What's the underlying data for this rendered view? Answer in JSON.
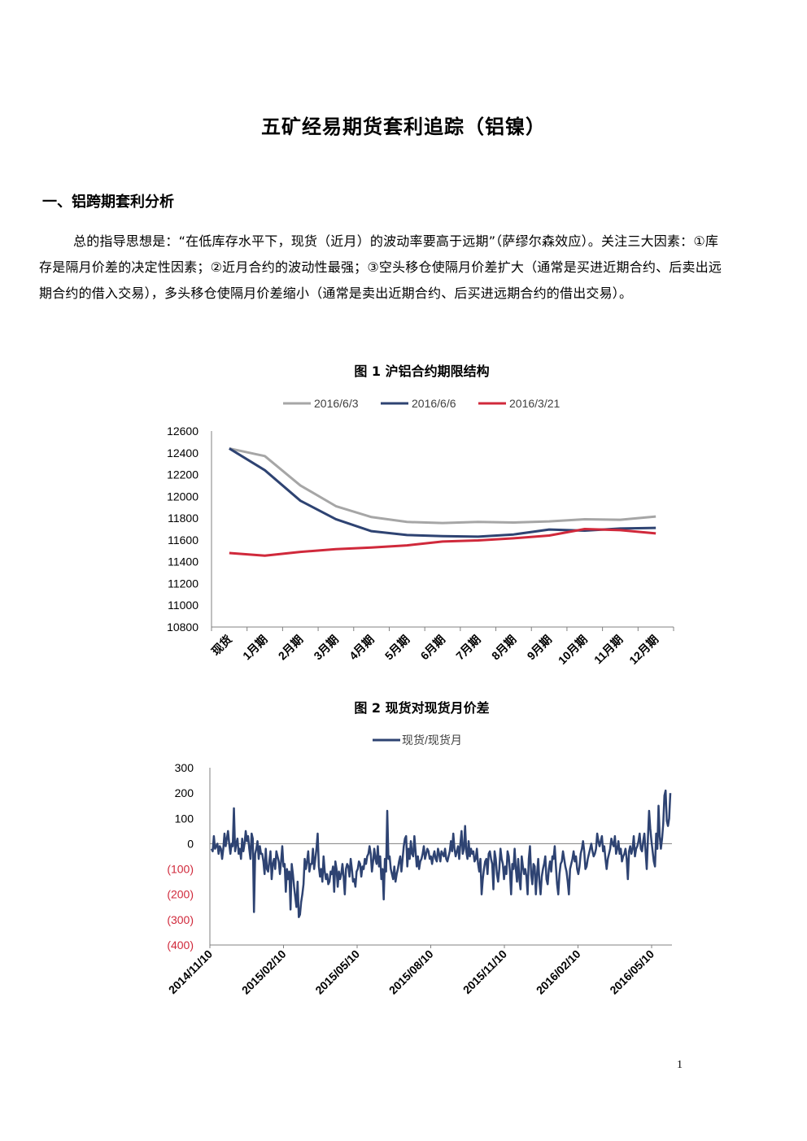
{
  "doc": {
    "title": "五矿经易期货套利追踪（铝镍）",
    "section_heading": "一、铝跨期套利分析",
    "paragraph": "总的指导思想是：“在低库存水平下，现货（近月）的波动率要高于远期”（萨缪尔森效应）。关注三大因素：①库存是隔月价差的决定性因素；②近月合约的波动性最强；③空头移仓使隔月价差扩大（通常是买进近期合约、后卖出远期合约的借入交易），多头移仓使隔月价差缩小（通常是卖出近期合约、后买进远期合约的借出交易）。",
    "page_number": "1"
  },
  "chart_data": [
    {
      "type": "line",
      "title": "图 1  沪铝合约期限结构",
      "categories": [
        "现货",
        "1月期",
        "2月期",
        "3月期",
        "4月期",
        "5月期",
        "6月期",
        "7月期",
        "8月期",
        "9月期",
        "10月期",
        "11月期",
        "12月期"
      ],
      "ylim": [
        10800,
        12600
      ],
      "yticks": [
        12600,
        12400,
        12200,
        12000,
        11800,
        11600,
        11400,
        11200,
        11000,
        10800
      ],
      "legend_position": "top",
      "series": [
        {
          "name": "2016/6/3",
          "color": "#a6a6a6",
          "values": [
            12440,
            12370,
            12100,
            11910,
            11810,
            11765,
            11755,
            11765,
            11760,
            11770,
            11790,
            11785,
            11815
          ]
        },
        {
          "name": "2016/6/6",
          "color": "#2e4372",
          "values": [
            12440,
            12240,
            11960,
            11790,
            11680,
            11645,
            11635,
            11630,
            11650,
            11695,
            11685,
            11705,
            11710
          ]
        },
        {
          "name": "2016/3/21",
          "color": "#d0293b",
          "values": [
            11480,
            11455,
            11490,
            11515,
            11530,
            11550,
            11585,
            11595,
            11615,
            11640,
            11700,
            11690,
            11660
          ]
        }
      ]
    },
    {
      "type": "line",
      "title": "图 2  现货对现货月价差",
      "ylim": [
        -400,
        300
      ],
      "yticks": [
        "300",
        "200",
        "100",
        "0",
        "(100)",
        "(200)",
        "(300)",
        "(400)"
      ],
      "negative_tick_color": "#d0293b",
      "x_tick_labels": [
        "2014/11/10",
        "2015/02/10",
        "2015/05/10",
        "2015/08/10",
        "2015/11/10",
        "2016/02/10",
        "2016/05/10"
      ],
      "x_range": [
        "2014/11/10",
        "2016/06/06"
      ],
      "legend_position": "top",
      "series": [
        {
          "name": "现货/现货月",
          "color": "#2e4372",
          "values": [
            -20,
            -30,
            30,
            -20,
            -10,
            0,
            -40,
            -10,
            -20,
            -60,
            -20,
            40,
            -10,
            20,
            50,
            0,
            -40,
            0,
            -10,
            140,
            -30,
            0,
            20,
            -40,
            -20,
            -60,
            20,
            -30,
            0,
            50,
            10,
            30,
            -20,
            -60,
            40,
            20,
            -270,
            -40,
            -20,
            10,
            -60,
            -10,
            -40,
            -40,
            -70,
            -120,
            -20,
            -100,
            -110,
            -70,
            -30,
            -140,
            -80,
            -60,
            -100,
            -30,
            -50,
            -70,
            -120,
            -70,
            -10,
            -90,
            -80,
            -190,
            -100,
            -140,
            -110,
            -260,
            -80,
            -120,
            -170,
            -210,
            -250,
            -150,
            -290,
            -280,
            -230,
            -200,
            -160,
            -60,
            -100,
            -70,
            -30,
            -110,
            -80,
            -80,
            -20,
            -100,
            -60,
            -20,
            40,
            -90,
            -130,
            -100,
            -150,
            -50,
            -110,
            -140,
            -120,
            -160,
            -150,
            -110,
            -120,
            -90,
            -190,
            -70,
            -100,
            -170,
            -110,
            -140,
            -120,
            -80,
            -130,
            -200,
            -100,
            -80,
            -90,
            -130,
            -60,
            -100,
            -150,
            -140,
            -170,
            -110,
            -100,
            -70,
            -80,
            -130,
            -90,
            -100,
            -60,
            -80,
            -50,
            -40,
            -10,
            -40,
            -110,
            -70,
            -20,
            -60,
            -80,
            -10,
            -90,
            -50,
            -140,
            -100,
            -220,
            -60,
            -110,
            130,
            -60,
            -50,
            -100,
            -120,
            -140,
            -90,
            -150,
            -120,
            -100,
            -70,
            -50,
            -110,
            -60,
            -10,
            20,
            30,
            -90,
            -20,
            -60,
            10,
            -40,
            -50,
            30,
            -30,
            -90,
            -50,
            -100,
            -70,
            -60,
            -40,
            -10,
            -60,
            -40,
            -20,
            -30,
            -60,
            -50,
            -80,
            -50,
            -30,
            -60,
            -70,
            -20,
            -40,
            -70,
            -30,
            -40,
            -50,
            -20,
            -60,
            -70,
            -50,
            -30,
            10,
            -30,
            40,
            -20,
            -50,
            -30,
            -10,
            -60,
            0,
            50,
            -40,
            -20,
            70,
            -30,
            -60,
            10,
            -50,
            -20,
            -40,
            -30,
            -70,
            -60,
            -20,
            -80,
            -110,
            -60,
            -200,
            -140,
            -100,
            -70,
            -60,
            -120,
            -40,
            -30,
            -60,
            -80,
            -180,
            -30,
            -60,
            -120,
            -150,
            -100,
            -20,
            -60,
            -80,
            -140,
            -90,
            -120,
            -30,
            -50,
            -110,
            -200,
            -80,
            -100,
            -20,
            -100,
            -150,
            -60,
            -140,
            -180,
            -50,
            -90,
            -120,
            -100,
            -130,
            -200,
            -60,
            -10,
            -120,
            -160,
            -80,
            -90,
            -200,
            -120,
            -60,
            -150,
            -200,
            -130,
            -100,
            -80,
            -50,
            -140,
            -160,
            -100,
            -70,
            -110,
            -50,
            -60,
            -10,
            -90,
            -160,
            -200,
            -120,
            -80,
            -70,
            -30,
            -60,
            -90,
            -110,
            -150,
            -200,
            -100,
            -80,
            -60,
            -30,
            -70,
            -50,
            -100,
            -120,
            -90,
            -40,
            -20,
            10,
            -30,
            -100,
            -90,
            -60,
            -40,
            -20,
            0,
            -30,
            -50,
            -40,
            -20,
            40,
            10,
            -10,
            10,
            30,
            -30,
            -10,
            -60,
            -100,
            -60,
            -40,
            -20,
            20,
            0,
            -10,
            30,
            -40,
            -20,
            10,
            -40,
            -20,
            -70,
            -50,
            -40,
            -20,
            -60,
            -140,
            -30,
            -10,
            -40,
            -20,
            30,
            -50,
            -20,
            -10,
            10,
            40,
            -20,
            -30,
            10,
            40,
            -30,
            -100,
            20,
            130,
            60,
            10,
            -30,
            -70,
            -90,
            40,
            -20,
            150,
            30,
            -20,
            20,
            80,
            190,
            210,
            90,
            70,
            100,
            200
          ]
        }
      ]
    }
  ]
}
